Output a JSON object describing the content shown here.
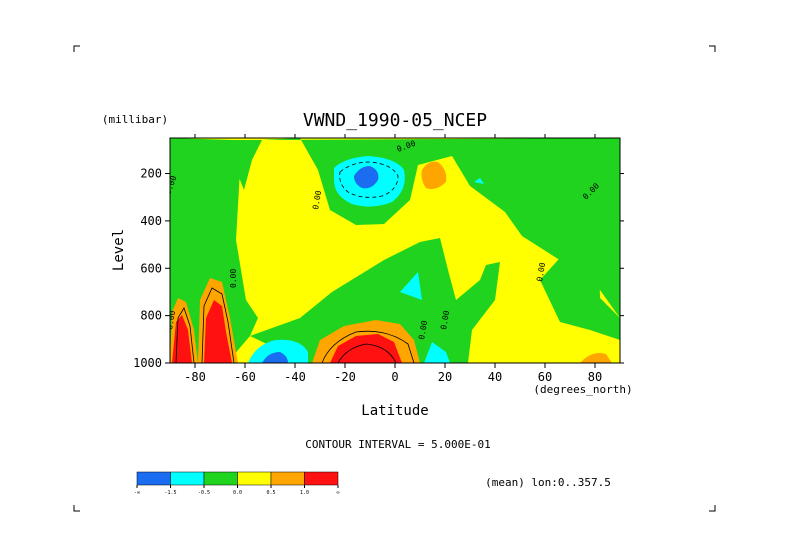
{
  "chart_data": {
    "type": "heatmap",
    "title": "VWND_1990-05_NCEP",
    "xlabel": "Latitude",
    "x_unit_label": "(degrees_north)",
    "ylabel": "Level",
    "y_unit_label": "(millibar)",
    "x_ticks": [
      "-80",
      "-60",
      "-40",
      "-20",
      "0",
      "20",
      "40",
      "60",
      "80"
    ],
    "y_ticks": [
      "200",
      "400",
      "600",
      "800",
      "1000"
    ],
    "xlim": [
      -90,
      90
    ],
    "ylim": [
      1000,
      50
    ],
    "y_reversed": true,
    "contour_interval_label": "CONTOUR INTERVAL = 5.000E-01",
    "subtitle_right": "(mean) lon:0..357.5",
    "colorbar": {
      "bins": [
        {
          "color": "#1a6cf0",
          "range": "< -1.5"
        },
        {
          "color": "#00ffff",
          "range": "-1.5 to -0.5"
        },
        {
          "color": "#1fd31f",
          "range": "-0.5 to 0.0"
        },
        {
          "color": "#ffff00",
          "range": "0.0 to 0.5"
        },
        {
          "color": "#ffa500",
          "range": "0.5 to 1.0"
        },
        {
          "color": "#ff1111",
          "range": "> 1.0"
        }
      ],
      "tick_labels": [
        "-∞",
        "-1.5",
        "-0.5",
        "0.0",
        "0.5",
        "1.0",
        "∞"
      ]
    },
    "contour_labels": [
      "0.00",
      "0.00",
      "0.00",
      "0.00",
      "0.00",
      "0.00",
      "0.00",
      "0.00",
      "0.00"
    ],
    "regions": [
      {
        "value_bin": "0.0 to 0.5",
        "note": "background fill"
      },
      {
        "value_bin": "-0.5 to 0.0",
        "lat_range": [
          -90,
          -60
        ],
        "level_range": [
          1000,
          100
        ]
      },
      {
        "value_bin": "> 1.0",
        "lat_range": [
          -88,
          -70
        ],
        "level_range": [
          1000,
          760
        ]
      },
      {
        "value_bin": "< -1.5",
        "lat_range": [
          -14,
          -6
        ],
        "level_range": [
          230,
          180
        ]
      },
      {
        "value_bin": "-1.5 to -0.5",
        "lat_range": [
          -52,
          -40
        ],
        "level_range": [
          1000,
          940
        ]
      },
      {
        "value_bin": "> 1.0",
        "lat_range": [
          -20,
          -5
        ],
        "level_range": [
          1000,
          920
        ]
      },
      {
        "value_bin": "0.5 to 1.0",
        "lat_range": [
          10,
          20
        ],
        "level_range": [
          230,
          140
        ]
      }
    ]
  }
}
